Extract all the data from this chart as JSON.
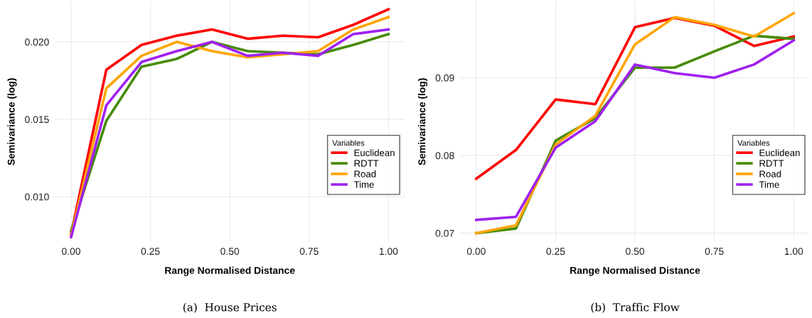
{
  "chart_data": [
    {
      "type": "line",
      "xlabel": "Range Normalised Distance",
      "ylabel": "Semivariance (log)",
      "legend_title": "Variables",
      "legend": "right",
      "grid": true,
      "marker": "none",
      "line_style": "solid",
      "x": [
        0,
        0.111,
        0.222,
        0.333,
        0.444,
        0.556,
        0.667,
        0.778,
        0.889,
        1
      ],
      "xlim": [
        -0.05,
        1.05
      ],
      "xticks": [
        {
          "value": 0,
          "label": "0.00"
        },
        {
          "value": 0.25,
          "label": "0.25"
        },
        {
          "value": 0.5,
          "label": "0.50"
        },
        {
          "value": 0.75,
          "label": "0.75"
        },
        {
          "value": 1,
          "label": "1.00"
        }
      ],
      "ylim": [
        0.0071,
        0.0226
      ],
      "yticks": [
        {
          "value": 0.01,
          "label": "0.010"
        },
        {
          "value": 0.015,
          "label": "0.015"
        },
        {
          "value": 0.02,
          "label": "0.020"
        }
      ],
      "series": [
        {
          "name": "Euclidean",
          "color": "#ff0000",
          "values": [
            0.0076,
            0.0182,
            0.0198,
            0.0204,
            0.0208,
            0.0202,
            0.0204,
            0.0203,
            0.0211,
            0.0221
          ]
        },
        {
          "name": "RDTT",
          "color": "#458b00",
          "values": [
            0.0078,
            0.0149,
            0.0184,
            0.0189,
            0.02,
            0.0194,
            0.0193,
            0.0192,
            0.0198,
            0.0205
          ]
        },
        {
          "name": "Road",
          "color": "#ffa500",
          "values": [
            0.0075,
            0.017,
            0.0191,
            0.02,
            0.0194,
            0.019,
            0.0192,
            0.0194,
            0.0208,
            0.0216
          ]
        },
        {
          "name": "Time",
          "color": "#a020f0",
          "values": [
            0.0074,
            0.0159,
            0.0187,
            0.0194,
            0.02,
            0.0191,
            0.0193,
            0.0191,
            0.0205,
            0.0208
          ]
        }
      ],
      "annotations": [
        "(a)  House Prices"
      ]
    },
    {
      "type": "line",
      "xlabel": "Range Normalised Distance",
      "ylabel": "Semivariance (log)",
      "legend_title": "Variables",
      "legend": "right",
      "grid": true,
      "marker": "none",
      "line_style": "solid",
      "x": [
        0,
        0.125,
        0.25,
        0.375,
        0.5,
        0.625,
        0.75,
        0.875,
        1
      ],
      "xlim": [
        -0.05,
        1.05
      ],
      "xticks": [
        {
          "value": 0,
          "label": "0.00"
        },
        {
          "value": 0.25,
          "label": "0.25"
        },
        {
          "value": 0.5,
          "label": "0.50"
        },
        {
          "value": 0.75,
          "label": "0.75"
        },
        {
          "value": 1,
          "label": "1.00"
        }
      ],
      "ylim": [
        0.0689,
        0.0998
      ],
      "yticks": [
        {
          "value": 0.07,
          "label": "0.07"
        },
        {
          "value": 0.08,
          "label": "0.08"
        },
        {
          "value": 0.09,
          "label": "0.09"
        }
      ],
      "series": [
        {
          "name": "Euclidean",
          "color": "#ff0000",
          "values": [
            0.077,
            0.0807,
            0.0872,
            0.0866,
            0.0965,
            0.0977,
            0.0967,
            0.0941,
            0.0953
          ]
        },
        {
          "name": "RDTT",
          "color": "#458b00",
          "values": [
            0.07,
            0.0706,
            0.0819,
            0.0848,
            0.0913,
            0.0913,
            0.0934,
            0.0954,
            0.095
          ]
        },
        {
          "name": "Road",
          "color": "#ffa500",
          "values": [
            0.07,
            0.071,
            0.0814,
            0.0851,
            0.0943,
            0.0978,
            0.0968,
            0.0953,
            0.0983
          ]
        },
        {
          "name": "Time",
          "color": "#a020f0",
          "values": [
            0.0717,
            0.0721,
            0.081,
            0.0844,
            0.0917,
            0.0906,
            0.09,
            0.0917,
            0.0948
          ]
        }
      ],
      "annotations": [
        "(b)  Traffic Flow"
      ]
    }
  ]
}
